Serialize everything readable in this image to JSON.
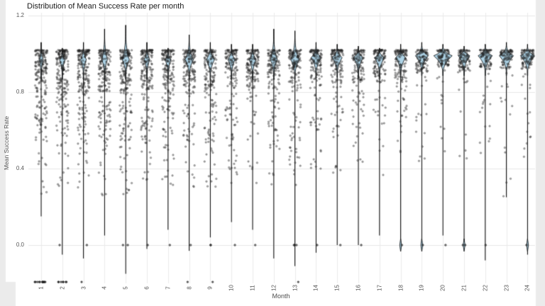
{
  "chart_data": {
    "type": "violin_strip",
    "title": "Distribution of Mean Success Rate per month",
    "xlabel": "Month",
    "ylabel": "Mean Success Rate",
    "x_ticks": [
      "1",
      "2",
      "3",
      "4",
      "5",
      "6",
      "7",
      "8",
      "9",
      "10",
      "11",
      "12",
      "13",
      "14",
      "15",
      "16",
      "17",
      "18",
      "19",
      "20",
      "21",
      "22",
      "23",
      "24"
    ],
    "y_ticks": [
      "0.0",
      "0.4",
      "0.8",
      "1.2"
    ],
    "y_tick_values": [
      0.0,
      0.4,
      0.8,
      1.2
    ],
    "ylim": [
      -0.2,
      1.215
    ],
    "grid": true,
    "legend": "none",
    "colors": {
      "violin_fill": "#aed3e6",
      "violin_stroke": "#000000",
      "point": "#373737",
      "grid_major": "#e7e7e7",
      "grid_vertical": "#ececec",
      "panel_bg": "#ffffff",
      "side_strip": "#ebebeb",
      "text": "#4d4d4d",
      "title_text": "#1a1a1a"
    },
    "note": "Point clouds estimated from pixels; each month shows a narrow violin peaking near 1.0 with jittered observations, occasional zeros, and low outlier clusters.",
    "floor_value": -0.193,
    "months": [
      {
        "m": 1,
        "violin": {
          "tip": 1.06,
          "mode": 0.97,
          "hw": 3,
          "bottom": 0.15
        },
        "pts": {
          "n": 195,
          "bands": [
            [
              0.8,
              1.02,
              0.66
            ],
            [
              0.55,
              0.8,
              0.25
            ],
            [
              0.25,
              0.55,
              0.09
            ]
          ]
        },
        "zeros": 0,
        "floor": 12,
        "zero_bulge": false
      },
      {
        "m": 2,
        "violin": {
          "tip": 1.03,
          "mode": 0.97,
          "hw": 4,
          "bottom": -0.05
        },
        "pts": {
          "n": 205,
          "bands": [
            [
              0.8,
              1.02,
              0.68
            ],
            [
              0.55,
              0.8,
              0.24
            ],
            [
              0.25,
              0.55,
              0.08
            ]
          ]
        },
        "zeros": 1,
        "floor": 7,
        "zero_bulge": false
      },
      {
        "m": 3,
        "violin": {
          "tip": 1.06,
          "mode": 0.97,
          "hw": 4,
          "bottom": -0.07
        },
        "pts": {
          "n": 190,
          "bands": [
            [
              0.8,
              1.02,
              0.68
            ],
            [
              0.55,
              0.8,
              0.24
            ],
            [
              0.25,
              0.55,
              0.08
            ]
          ]
        },
        "zeros": 1,
        "floor": 1,
        "zero_bulge": false
      },
      {
        "m": 4,
        "violin": {
          "tip": 1.13,
          "mode": 0.97,
          "hw": 4,
          "bottom": 0.05
        },
        "pts": {
          "n": 190,
          "bands": [
            [
              0.8,
              1.02,
              0.7
            ],
            [
              0.55,
              0.8,
              0.22
            ],
            [
              0.25,
              0.55,
              0.08
            ]
          ]
        },
        "zeros": 0,
        "floor": 0,
        "zero_bulge": false
      },
      {
        "m": 5,
        "violin": {
          "tip": 1.15,
          "mode": 0.97,
          "hw": 5,
          "bottom": -0.15
        },
        "pts": {
          "n": 185,
          "bands": [
            [
              0.8,
              1.02,
              0.7
            ],
            [
              0.55,
              0.8,
              0.22
            ],
            [
              0.25,
              0.55,
              0.08
            ]
          ]
        },
        "zeros": 2,
        "floor": 0,
        "zero_bulge": false
      },
      {
        "m": 6,
        "violin": {
          "tip": 1.06,
          "mode": 0.97,
          "hw": 4,
          "bottom": -0.02
        },
        "pts": {
          "n": 180,
          "bands": [
            [
              0.8,
              1.02,
              0.7
            ],
            [
              0.55,
              0.8,
              0.22
            ],
            [
              0.3,
              0.55,
              0.08
            ]
          ]
        },
        "zeros": 1,
        "floor": 0,
        "zero_bulge": false
      },
      {
        "m": 7,
        "violin": {
          "tip": 1.03,
          "mode": 0.97,
          "hw": 4,
          "bottom": 0.08
        },
        "pts": {
          "n": 180,
          "bands": [
            [
              0.8,
              1.02,
              0.7
            ],
            [
              0.55,
              0.8,
              0.22
            ],
            [
              0.3,
              0.55,
              0.08
            ]
          ]
        },
        "zeros": 1,
        "floor": 0,
        "zero_bulge": false
      },
      {
        "m": 8,
        "violin": {
          "tip": 1.1,
          "mode": 0.97,
          "hw": 6,
          "bottom": -0.03
        },
        "pts": {
          "n": 170,
          "bands": [
            [
              0.82,
              1.02,
              0.72
            ],
            [
              0.55,
              0.82,
              0.2
            ],
            [
              0.3,
              0.55,
              0.08
            ]
          ]
        },
        "zeros": 1,
        "floor": 1,
        "zero_bulge": false
      },
      {
        "m": 9,
        "violin": {
          "tip": 1.06,
          "mode": 0.97,
          "hw": 6,
          "bottom": 0.04
        },
        "pts": {
          "n": 165,
          "bands": [
            [
              0.82,
              1.02,
              0.72
            ],
            [
              0.55,
              0.82,
              0.2
            ],
            [
              0.3,
              0.55,
              0.08
            ]
          ]
        },
        "zeros": 2,
        "floor": 1,
        "zero_bulge": false
      },
      {
        "m": 10,
        "violin": {
          "tip": 1.05,
          "mode": 0.97,
          "hw": 5,
          "bottom": 0.12
        },
        "pts": {
          "n": 150,
          "bands": [
            [
              0.82,
              1.02,
              0.74
            ],
            [
              0.55,
              0.82,
              0.19
            ],
            [
              0.3,
              0.55,
              0.07
            ]
          ]
        },
        "zeros": 1,
        "floor": 0,
        "zero_bulge": false
      },
      {
        "m": 11,
        "violin": {
          "tip": 1.05,
          "mode": 0.97,
          "hw": 5,
          "bottom": 0.08
        },
        "pts": {
          "n": 150,
          "bands": [
            [
              0.82,
              1.02,
              0.74
            ],
            [
              0.55,
              0.82,
              0.19
            ],
            [
              0.3,
              0.55,
              0.07
            ]
          ]
        },
        "zeros": 1,
        "floor": 0,
        "zero_bulge": false
      },
      {
        "m": 12,
        "violin": {
          "tip": 1.13,
          "mode": 0.97,
          "hw": 5,
          "bottom": -0.07
        },
        "pts": {
          "n": 150,
          "bands": [
            [
              0.82,
              1.02,
              0.74
            ],
            [
              0.55,
              0.82,
              0.19
            ],
            [
              0.3,
              0.55,
              0.07
            ]
          ]
        },
        "zeros": 0,
        "floor": 0,
        "zero_bulge": false
      },
      {
        "m": 13,
        "violin": {
          "tip": 1.12,
          "mode": 0.97,
          "hw": 6,
          "bottom": -0.11
        },
        "pts": {
          "n": 150,
          "bands": [
            [
              0.82,
              1.02,
              0.74
            ],
            [
              0.55,
              0.82,
              0.19
            ],
            [
              0.3,
              0.55,
              0.07
            ]
          ]
        },
        "zeros": 3,
        "floor": 1,
        "zero_bulge": false
      },
      {
        "m": 14,
        "violin": {
          "tip": 1.06,
          "mode": 0.98,
          "hw": 7,
          "bottom": -0.04
        },
        "pts": {
          "n": 135,
          "bands": [
            [
              0.85,
              1.02,
              0.78
            ],
            [
              0.6,
              0.85,
              0.16
            ],
            [
              0.35,
              0.6,
              0.06
            ]
          ]
        },
        "zeros": 1,
        "floor": 0,
        "zero_bulge": false
      },
      {
        "m": 15,
        "violin": {
          "tip": 1.05,
          "mode": 0.98,
          "hw": 7,
          "bottom": 0.0
        },
        "pts": {
          "n": 135,
          "bands": [
            [
              0.85,
              1.02,
              0.78
            ],
            [
              0.6,
              0.85,
              0.16
            ],
            [
              0.35,
              0.6,
              0.06
            ]
          ]
        },
        "zeros": 1,
        "floor": 0,
        "zero_bulge": false
      },
      {
        "m": 16,
        "violin": {
          "tip": 1.04,
          "mode": 0.98,
          "hw": 7,
          "bottom": 0.0
        },
        "pts": {
          "n": 130,
          "bands": [
            [
              0.85,
              1.02,
              0.78
            ],
            [
              0.6,
              0.85,
              0.16
            ],
            [
              0.35,
              0.6,
              0.06
            ]
          ]
        },
        "zeros": 1,
        "floor": 0,
        "zero_bulge": false
      },
      {
        "m": 17,
        "violin": {
          "tip": 1.03,
          "mode": 0.98,
          "hw": 7,
          "bottom": 0.05
        },
        "pts": {
          "n": 130,
          "bands": [
            [
              0.85,
              1.02,
              0.8
            ],
            [
              0.6,
              0.85,
              0.15
            ],
            [
              0.35,
              0.6,
              0.05
            ]
          ]
        },
        "zeros": 0,
        "floor": 0,
        "zero_bulge": false
      },
      {
        "m": 18,
        "violin": {
          "tip": 1.05,
          "mode": 0.98,
          "hw": 7,
          "bottom": -0.02
        },
        "pts": {
          "n": 130,
          "bands": [
            [
              0.85,
              1.02,
              0.8
            ],
            [
              0.6,
              0.85,
              0.15
            ],
            [
              0.35,
              0.6,
              0.05
            ]
          ]
        },
        "zeros": 1,
        "floor": 0,
        "zero_bulge": true
      },
      {
        "m": 19,
        "violin": {
          "tip": 1.06,
          "mode": 0.99,
          "hw": 9,
          "bottom": 0.0
        },
        "pts": {
          "n": 110,
          "bands": [
            [
              0.9,
              1.02,
              0.85
            ],
            [
              0.65,
              0.9,
              0.11
            ],
            [
              0.4,
              0.65,
              0.04
            ]
          ]
        },
        "zeros": 1,
        "floor": 0,
        "zero_bulge": true
      },
      {
        "m": 20,
        "violin": {
          "tip": 1.05,
          "mode": 0.99,
          "hw": 13,
          "bottom": 0.05
        },
        "pts": {
          "n": 100,
          "bands": [
            [
              0.93,
              1.02,
              0.88
            ],
            [
              0.7,
              0.93,
              0.09
            ],
            [
              0.45,
              0.7,
              0.03
            ]
          ]
        },
        "zeros": 1,
        "floor": 0,
        "zero_bulge": false
      },
      {
        "m": 21,
        "violin": {
          "tip": 1.04,
          "mode": 0.99,
          "hw": 8,
          "bottom": -0.01
        },
        "pts": {
          "n": 105,
          "bands": [
            [
              0.9,
              1.02,
              0.86
            ],
            [
              0.65,
              0.9,
              0.1
            ],
            [
              0.4,
              0.65,
              0.04
            ]
          ]
        },
        "zeros": 2,
        "floor": 0,
        "zero_bulge": true
      },
      {
        "m": 22,
        "violin": {
          "tip": 1.05,
          "mode": 0.99,
          "hw": 10,
          "bottom": -0.08
        },
        "pts": {
          "n": 100,
          "bands": [
            [
              0.92,
              1.02,
              0.87
            ],
            [
              0.68,
              0.92,
              0.09
            ],
            [
              0.45,
              0.68,
              0.04
            ]
          ]
        },
        "zeros": 1,
        "floor": 0,
        "zero_bulge": false
      },
      {
        "m": 23,
        "violin": {
          "tip": 1.06,
          "mode": 0.99,
          "hw": 10,
          "bottom": 0.25
        },
        "pts": {
          "n": 95,
          "bands": [
            [
              0.92,
              1.02,
              0.88
            ],
            [
              0.7,
              0.92,
              0.08
            ],
            [
              0.2,
              0.7,
              0.04
            ]
          ]
        },
        "zeros": 0,
        "floor": 0,
        "zero_bulge": false
      },
      {
        "m": 24,
        "violin": {
          "tip": 1.05,
          "mode": 0.99,
          "hw": 10,
          "bottom": -0.05
        },
        "pts": {
          "n": 100,
          "bands": [
            [
              0.92,
              1.02,
              0.88
            ],
            [
              0.68,
              0.92,
              0.08
            ],
            [
              0.45,
              0.68,
              0.04
            ]
          ]
        },
        "zeros": 1,
        "floor": 0,
        "zero_bulge": true
      }
    ]
  }
}
